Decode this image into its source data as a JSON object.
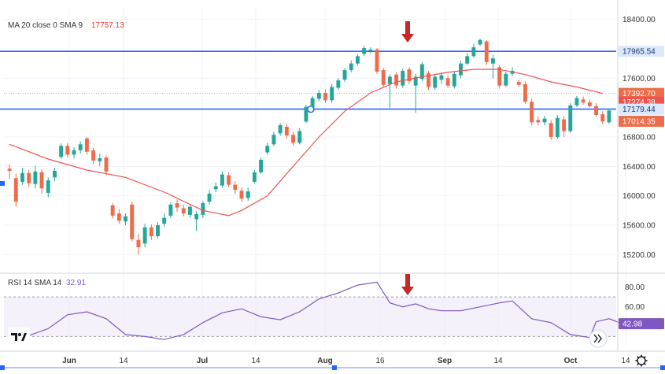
{
  "chart_data": [
    {
      "type": "candlestick",
      "legend": {
        "ma_label": "MA 20 close 0 SMA 9",
        "ma_value": "17757.13"
      },
      "y_ticks": [
        "18400.00",
        "17600.00",
        "16800.00",
        "16400.00",
        "16000.00",
        "15600.00",
        "15200.00"
      ],
      "x_ticks": [
        {
          "label": "Jun",
          "bold": true
        },
        {
          "label": "14",
          "bold": false
        },
        {
          "label": "Jul",
          "bold": true
        },
        {
          "label": "14",
          "bold": false
        },
        {
          "label": "Aug",
          "bold": true
        },
        {
          "label": "16",
          "bold": false
        },
        {
          "label": "Sep",
          "bold": true
        },
        {
          "label": "14",
          "bold": false
        },
        {
          "label": "Oct",
          "bold": true
        },
        {
          "label": "14",
          "bold": false
        }
      ],
      "ylim": [
        15000,
        18450
      ],
      "horizontal_lines": [
        17965.54,
        17179.44
      ],
      "price_badges": [
        {
          "value": "17965.54",
          "y": 17965.54,
          "bg": "#dbe7fb",
          "fg": "#1b3a73"
        },
        {
          "value": "17392.70",
          "y": 17392.7,
          "bg": "#ef6c4a",
          "fg": "#ffffff"
        },
        {
          "value": "17274.38",
          "y": 17274.38,
          "bg": "#ef5350",
          "fg": "#ffffff"
        },
        {
          "value": "17179.44",
          "y": 17179.44,
          "bg": "#dbe7fb",
          "fg": "#1b3a73"
        },
        {
          "value": "17014.35",
          "y": 17014.35,
          "bg": "#ef6c4a",
          "fg": "#ffffff"
        }
      ],
      "candles": [
        [
          16370,
          16340,
          16430,
          16230
        ],
        [
          16240,
          15920,
          16300,
          15850
        ],
        [
          16190,
          16310,
          16380,
          16150
        ],
        [
          16310,
          16170,
          16350,
          16120
        ],
        [
          16160,
          16330,
          16410,
          16100
        ],
        [
          16320,
          16100,
          16360,
          16030
        ],
        [
          16040,
          16210,
          16250,
          15980
        ],
        [
          16250,
          16340,
          16380,
          16200
        ],
        [
          16530,
          16680,
          16710,
          16500
        ],
        [
          16680,
          16560,
          16720,
          16520
        ],
        [
          16560,
          16620,
          16660,
          16510
        ],
        [
          16620,
          16700,
          16740,
          16580
        ],
        [
          16780,
          16600,
          16800,
          16560
        ],
        [
          16620,
          16480,
          16650,
          16430
        ],
        [
          16470,
          16510,
          16570,
          16400
        ],
        [
          16520,
          16330,
          16550,
          16280
        ],
        [
          15870,
          15730,
          15900,
          15690
        ],
        [
          15760,
          15660,
          15820,
          15620
        ],
        [
          15650,
          15720,
          15760,
          15600
        ],
        [
          15880,
          15410,
          15920,
          15380
        ],
        [
          15400,
          15300,
          15480,
          15200
        ],
        [
          15350,
          15570,
          15620,
          15300
        ],
        [
          15570,
          15450,
          15610,
          15400
        ],
        [
          15450,
          15600,
          15640,
          15420
        ],
        [
          15620,
          15700,
          15760,
          15580
        ],
        [
          15730,
          15880,
          15910,
          15700
        ],
        [
          15900,
          15840,
          15950,
          15780
        ],
        [
          15830,
          15760,
          15880,
          15720
        ],
        [
          15740,
          15850,
          15890,
          15700
        ],
        [
          15680,
          15750,
          15790,
          15520
        ],
        [
          15740,
          15900,
          15930,
          15700
        ],
        [
          15920,
          16030,
          16080,
          15880
        ],
        [
          16090,
          16130,
          16180,
          16050
        ],
        [
          16140,
          16290,
          16330,
          16110
        ],
        [
          16280,
          16150,
          16320,
          16120
        ],
        [
          16150,
          16080,
          16200,
          16020
        ],
        [
          16070,
          15960,
          16120,
          15920
        ],
        [
          15970,
          16060,
          16110,
          15930
        ],
        [
          16190,
          16320,
          16350,
          16170
        ],
        [
          16320,
          16490,
          16520,
          16300
        ],
        [
          16590,
          16680,
          16720,
          16560
        ],
        [
          16700,
          16830,
          16870,
          16680
        ],
        [
          16850,
          16960,
          16990,
          16820
        ],
        [
          16940,
          16820,
          16980,
          16780
        ],
        [
          16830,
          16720,
          16870,
          16680
        ],
        [
          16720,
          16880,
          16920,
          16700
        ],
        [
          17010,
          17210,
          17240,
          16990
        ],
        [
          17210,
          17330,
          17360,
          17190
        ],
        [
          17320,
          17400,
          17440,
          17290
        ],
        [
          17400,
          17300,
          17450,
          17260
        ],
        [
          17300,
          17480,
          17520,
          17270
        ],
        [
          17470,
          17570,
          17600,
          17440
        ],
        [
          17580,
          17710,
          17740,
          17550
        ],
        [
          17710,
          17800,
          17840,
          17680
        ],
        [
          17800,
          17900,
          17930,
          17770
        ],
        [
          17930,
          18010,
          18040,
          17900
        ],
        [
          17970,
          17990,
          18020,
          17940
        ],
        [
          17990,
          17690,
          18010,
          17660
        ],
        [
          17710,
          17510,
          17740,
          17480
        ],
        [
          17520,
          17620,
          17650,
          17200
        ],
        [
          17650,
          17500,
          17680,
          17460
        ],
        [
          17500,
          17700,
          17730,
          17470
        ],
        [
          17720,
          17560,
          17750,
          17520
        ],
        [
          17500,
          17620,
          17660,
          17130
        ],
        [
          17590,
          17790,
          17820,
          17560
        ],
        [
          17670,
          17480,
          17700,
          17440
        ],
        [
          17470,
          17620,
          17660,
          17440
        ],
        [
          17580,
          17640,
          17680,
          17520
        ],
        [
          17600,
          17500,
          17640,
          17470
        ],
        [
          17490,
          17660,
          17700,
          17460
        ],
        [
          17640,
          17800,
          17840,
          17600
        ],
        [
          17800,
          17900,
          17940,
          17780
        ],
        [
          17900,
          18020,
          18070,
          17880
        ],
        [
          18060,
          18120,
          18140,
          18040
        ],
        [
          18100,
          17820,
          18120,
          17780
        ],
        [
          17800,
          17870,
          17920,
          17600
        ],
        [
          17750,
          17500,
          17780,
          17460
        ],
        [
          17500,
          17660,
          17690,
          17480
        ],
        [
          17660,
          17700,
          17750,
          17630
        ],
        [
          17550,
          17510,
          17580,
          17480
        ],
        [
          17520,
          17280,
          17560,
          17250
        ],
        [
          17280,
          17000,
          17320,
          16960
        ],
        [
          17030,
          17000,
          17080,
          16960
        ],
        [
          17000,
          17050,
          17090,
          16960
        ],
        [
          16990,
          16800,
          17030,
          16760
        ],
        [
          16800,
          17060,
          17100,
          16780
        ],
        [
          17040,
          16880,
          17080,
          16800
        ],
        [
          16880,
          17230,
          17260,
          16860
        ],
        [
          17230,
          17330,
          17360,
          17210
        ],
        [
          17310,
          17270,
          17350,
          17240
        ],
        [
          17270,
          17220,
          17310,
          17200
        ],
        [
          17220,
          17100,
          17260,
          17080
        ],
        [
          17110,
          17010,
          17150,
          16980
        ],
        [
          17000,
          17160,
          17190,
          16980
        ]
      ],
      "ma_line": [
        [
          0,
          16700
        ],
        [
          6,
          16500
        ],
        [
          12,
          16350
        ],
        [
          18,
          16250
        ],
        [
          24,
          16050
        ],
        [
          30,
          15800
        ],
        [
          34,
          15730
        ],
        [
          36,
          15800
        ],
        [
          40,
          16000
        ],
        [
          44,
          16400
        ],
        [
          48,
          16800
        ],
        [
          52,
          17150
        ],
        [
          56,
          17400
        ],
        [
          60,
          17550
        ],
        [
          64,
          17620
        ],
        [
          68,
          17680
        ],
        [
          72,
          17720
        ],
        [
          76,
          17720
        ],
        [
          80,
          17650
        ],
        [
          84,
          17550
        ],
        [
          88,
          17480
        ],
        [
          92,
          17392.7
        ]
      ]
    },
    {
      "type": "line",
      "legend": {
        "label": "RSI 14 SMA 14",
        "value": "32.91"
      },
      "y_ticks": [
        "80.00",
        "60.00"
      ],
      "ylim": [
        20,
        90
      ],
      "band": [
        70,
        30
      ],
      "badge": {
        "value": "42.98",
        "y": 42.98,
        "bg": "#7e57c2",
        "fg": "#ffffff"
      },
      "rsi_line": [
        [
          0,
          33
        ],
        [
          3,
          31
        ],
        [
          6,
          38
        ],
        [
          9,
          52
        ],
        [
          12,
          55
        ],
        [
          15,
          48
        ],
        [
          18,
          32
        ],
        [
          21,
          30
        ],
        [
          24,
          27
        ],
        [
          27,
          32
        ],
        [
          30,
          44
        ],
        [
          33,
          54
        ],
        [
          36,
          58
        ],
        [
          39,
          50
        ],
        [
          42,
          47
        ],
        [
          45,
          55
        ],
        [
          48,
          68
        ],
        [
          51,
          74
        ],
        [
          54,
          82
        ],
        [
          57,
          85
        ],
        [
          59,
          64
        ],
        [
          61,
          60
        ],
        [
          63,
          63
        ],
        [
          65,
          58
        ],
        [
          67,
          56
        ],
        [
          70,
          56
        ],
        [
          73,
          60
        ],
        [
          76,
          64
        ],
        [
          78,
          66
        ],
        [
          81,
          48
        ],
        [
          84,
          44
        ],
        [
          87,
          32
        ],
        [
          90,
          29
        ],
        [
          91,
          45
        ],
        [
          93,
          48
        ],
        [
          95,
          43
        ]
      ]
    }
  ]
}
